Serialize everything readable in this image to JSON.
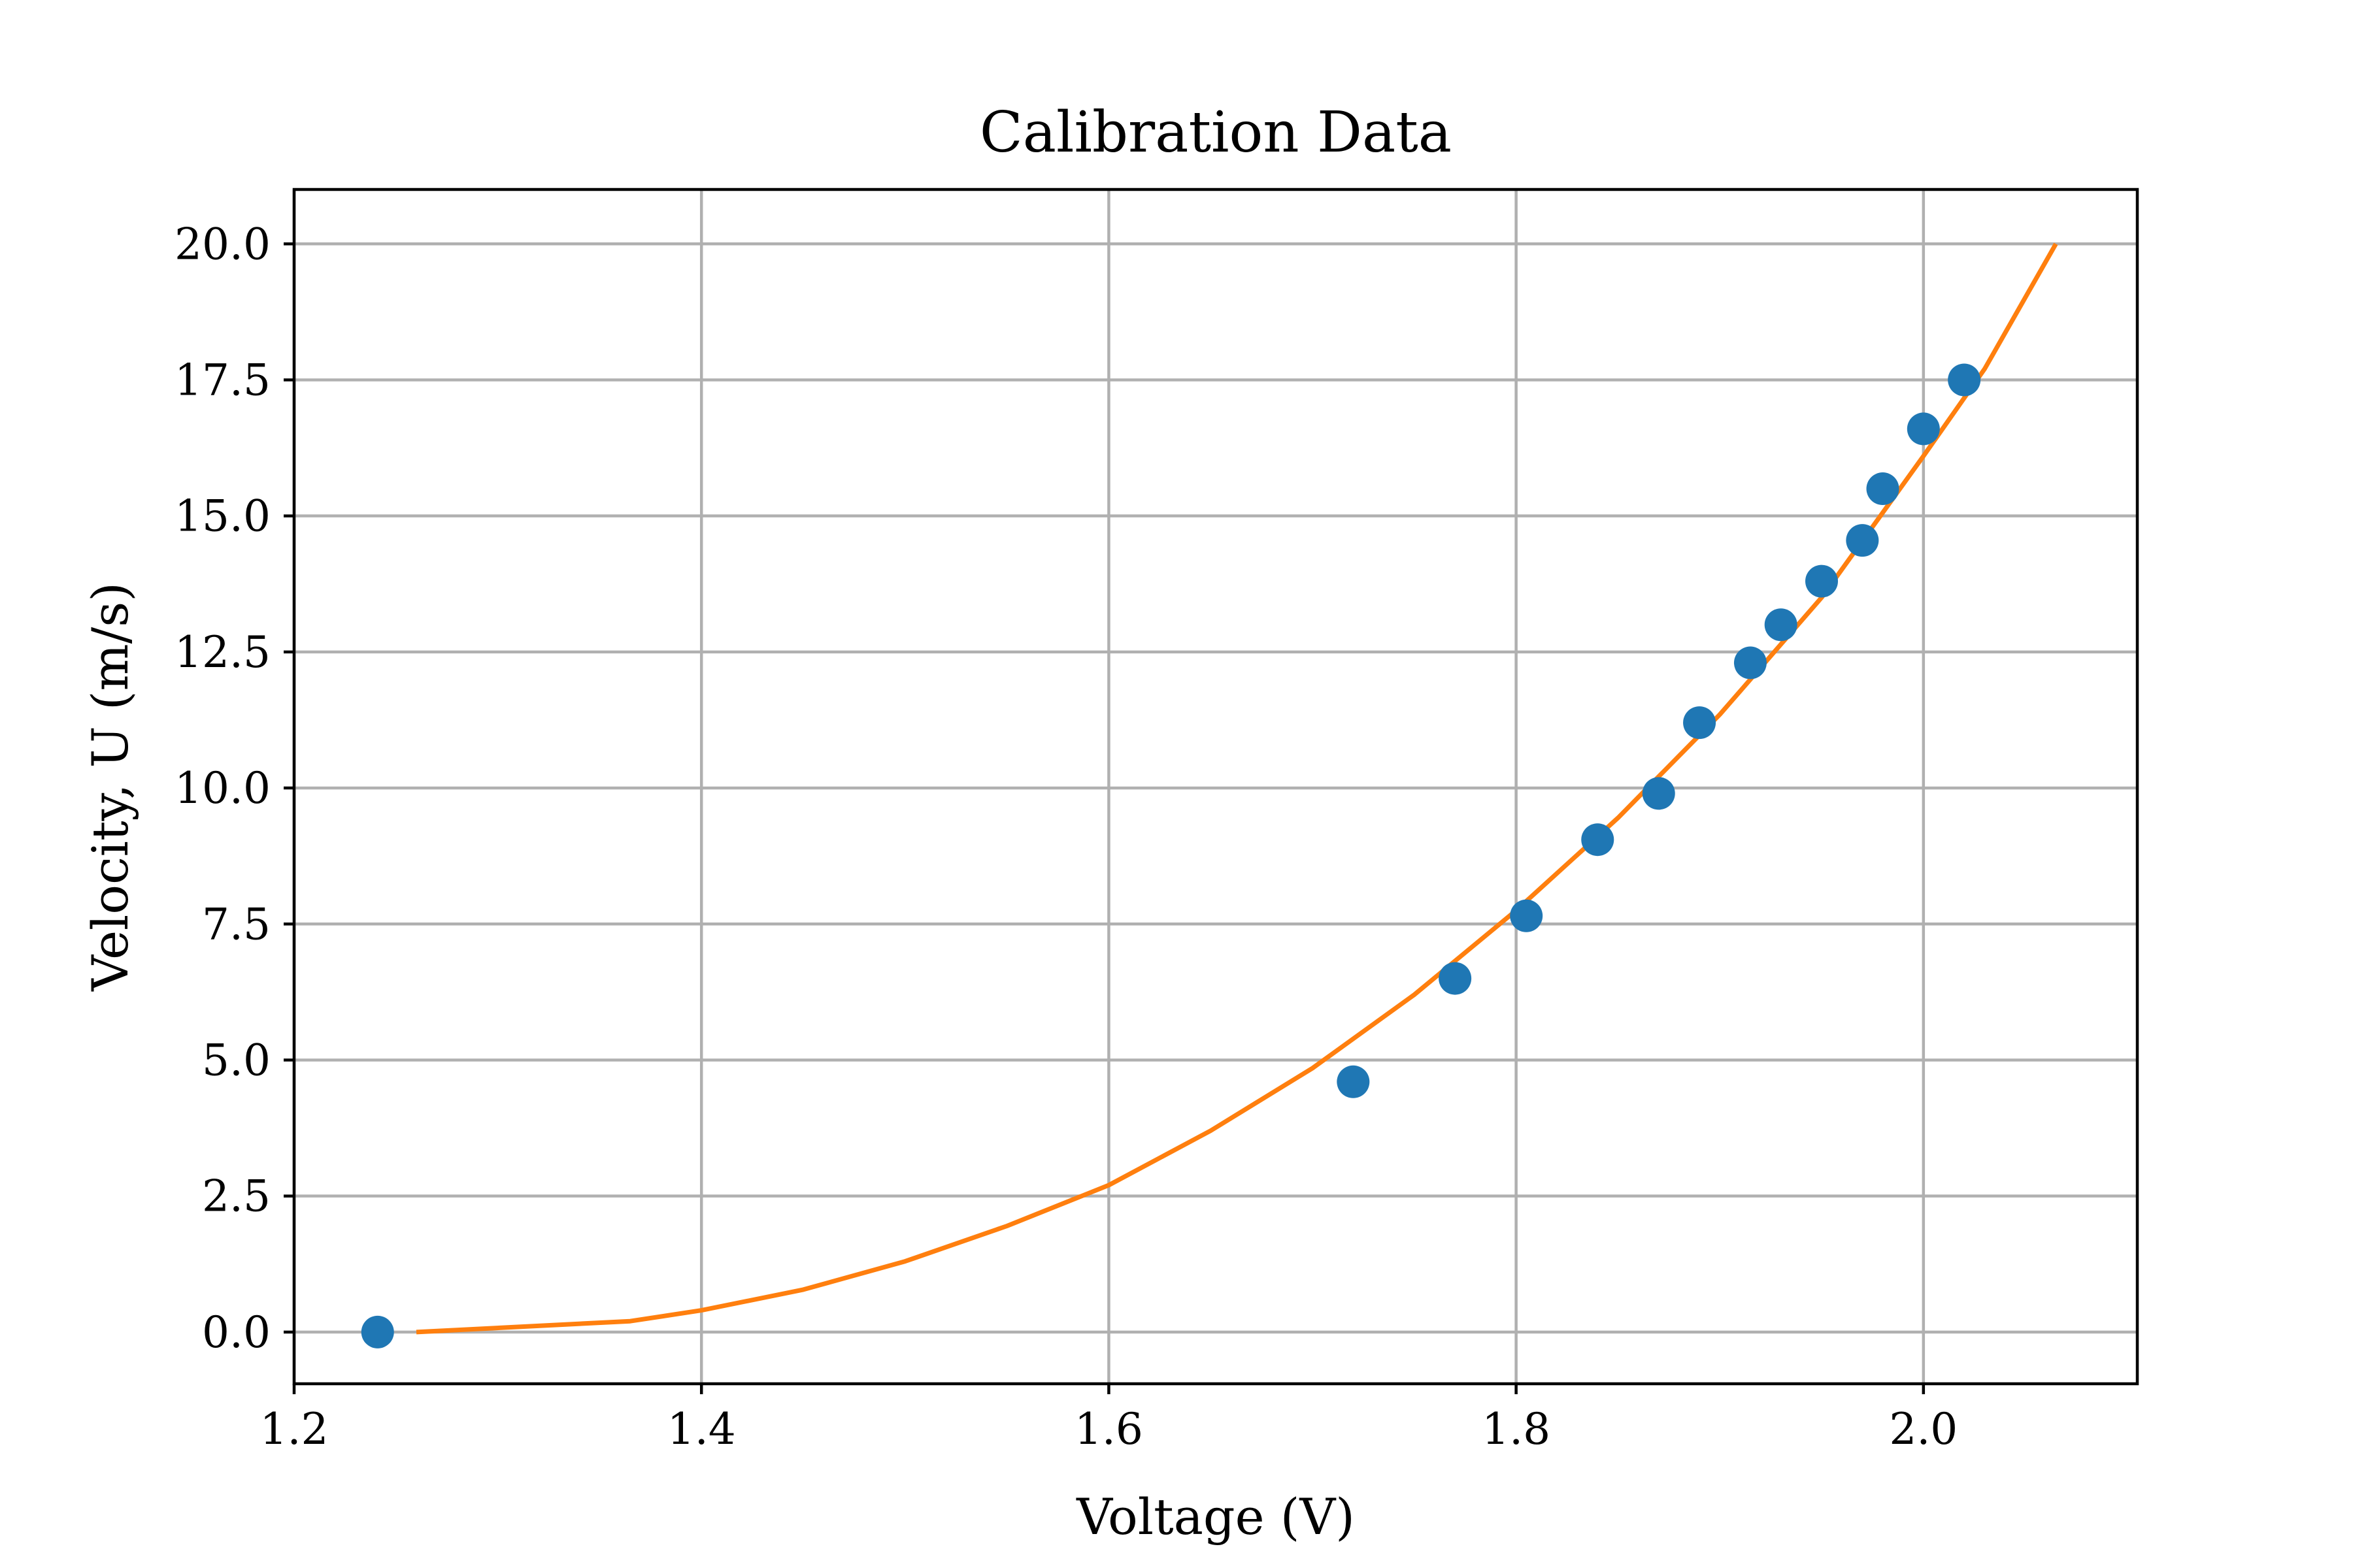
{
  "chart_data": {
    "type": "scatter",
    "title": "Calibration Data",
    "xlabel": "Voltage (V)",
    "ylabel": "Velocity, U (m/s)",
    "xlim": [
      1.2,
      2.105
    ],
    "ylim": [
      -0.95,
      21.0
    ],
    "x_ticks": [
      1.2,
      1.4,
      1.6,
      1.8,
      2.0
    ],
    "x_tick_labels": [
      "1.2",
      "1.4",
      "1.6",
      "1.8",
      "2.0"
    ],
    "y_ticks": [
      0.0,
      2.5,
      5.0,
      7.5,
      10.0,
      12.5,
      15.0,
      17.5,
      20.0
    ],
    "y_tick_labels": [
      "0.0",
      "2.5",
      "5.0",
      "7.5",
      "10.0",
      "12.5",
      "15.0",
      "17.5",
      "20.0"
    ],
    "grid": true,
    "series": [
      {
        "kind": "scatter",
        "color": "#1f77b4",
        "x": [
          1.241,
          1.72,
          1.77,
          1.805,
          1.84,
          1.87,
          1.89,
          1.915,
          1.93,
          1.95,
          1.97,
          1.98,
          2.0,
          2.02
        ],
        "y": [
          0.0,
          4.6,
          6.5,
          7.65,
          9.05,
          9.9,
          11.2,
          12.3,
          13.0,
          13.8,
          14.55,
          15.5,
          16.6,
          17.5
        ]
      },
      {
        "kind": "line",
        "color": "#ff7f0e",
        "x": [
          1.26,
          1.365,
          1.4,
          1.45,
          1.5,
          1.55,
          1.6,
          1.65,
          1.7,
          1.75,
          1.8,
          1.85,
          1.9,
          1.95,
          2.0,
          2.03,
          2.065
        ],
        "y": [
          0.0,
          0.2,
          0.4,
          0.78,
          1.3,
          1.95,
          2.7,
          3.7,
          4.85,
          6.2,
          7.75,
          9.45,
          11.35,
          13.5,
          16.1,
          17.7,
          20.0
        ]
      }
    ]
  }
}
